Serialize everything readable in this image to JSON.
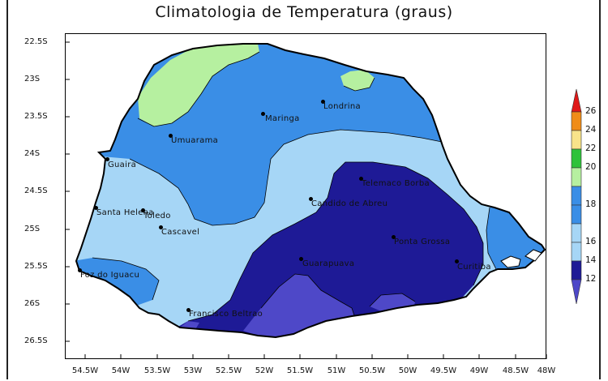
{
  "title": "Climatologia de Temperatura (graus)",
  "y_ticks": [
    "22.5S",
    "23S",
    "23.5S",
    "24S",
    "24.5S",
    "25S",
    "25.5S",
    "26S",
    "26.5S"
  ],
  "x_ticks": [
    "54.5W",
    "54W",
    "53.5W",
    "53W",
    "52.5W",
    "52W",
    "51.5W",
    "51W",
    "50.5W",
    "50W",
    "49.5W",
    "49W",
    "48.5W",
    "48W"
  ],
  "cities": [
    {
      "name": "Londrina"
    },
    {
      "name": "Maringa"
    },
    {
      "name": "Umuarama"
    },
    {
      "name": "Guaira"
    },
    {
      "name": "Telemaco Borba"
    },
    {
      "name": "Candido de Abreu"
    },
    {
      "name": "Santa Helena"
    },
    {
      "name": "Toledo"
    },
    {
      "name": "Cascavel"
    },
    {
      "name": "Ponta Grossa"
    },
    {
      "name": "Guarapuava"
    },
    {
      "name": "Curitiba"
    },
    {
      "name": "Foz do Iguacu"
    },
    {
      "name": "Francisco Beltrao"
    }
  ],
  "legend": {
    "levels": [
      "26",
      "24",
      "22",
      "20",
      "18",
      "16",
      "14",
      "12"
    ],
    "colors": [
      "#e01818",
      "#f08c18",
      "#f8e38a",
      "#2ec23a",
      "#b6f0a0",
      "#3a8ee6",
      "#a6d6f6",
      "#1e1a96",
      "#4e48c8"
    ]
  }
}
